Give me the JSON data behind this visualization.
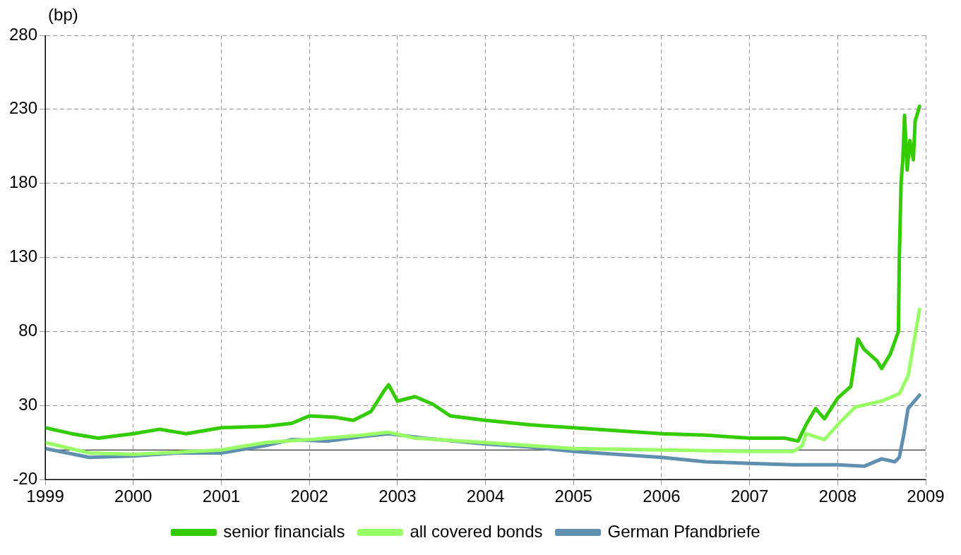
{
  "chart_data": {
    "type": "line",
    "ylabel": "(bp)",
    "xlim": [
      1999,
      2009
    ],
    "xticks": [
      1999,
      2000,
      2001,
      2002,
      2003,
      2004,
      2005,
      2006,
      2007,
      2008,
      2009
    ],
    "ylim": [
      -20,
      280
    ],
    "yticks": [
      -20,
      30,
      80,
      130,
      180,
      230,
      280
    ],
    "grid": true,
    "legend": "bottom",
    "marker": "none",
    "line_style": "solid",
    "ref_lines": [
      {
        "axis": "y",
        "value": 0,
        "color": "#000000"
      }
    ],
    "series": [
      {
        "name": "senior financials",
        "color": "#33cc00",
        "x": [
          1999,
          1999.3,
          1999.6,
          2000,
          2000.3,
          2000.6,
          2001,
          2001.5,
          2001.8,
          2002,
          2002.3,
          2002.5,
          2002.7,
          2002.85,
          2002.9,
          2003,
          2003.2,
          2003.4,
          2003.6,
          2004,
          2004.5,
          2005,
          2005.5,
          2006,
          2006.5,
          2007,
          2007.4,
          2007.55,
          2007.65,
          2007.75,
          2007.85,
          2008,
          2008.15,
          2008.23,
          2008.3,
          2008.45,
          2008.5,
          2008.6,
          2008.69,
          2008.7,
          2008.72,
          2008.74,
          2008.76,
          2008.79,
          2008.82,
          2008.86,
          2008.88,
          2008.93
        ],
        "values": [
          15,
          11,
          8,
          11,
          14,
          11,
          15,
          16,
          18,
          23,
          22,
          20,
          26,
          40,
          44,
          33,
          36,
          31,
          23,
          20,
          17,
          15,
          13,
          11,
          10,
          8,
          8,
          6,
          18,
          28,
          21,
          35,
          43,
          75,
          68,
          60,
          55,
          65,
          80,
          128,
          180,
          196,
          226,
          189,
          209,
          196,
          222,
          232
        ]
      },
      {
        "name": "all covered bonds",
        "color": "#99ff66",
        "x": [
          1999,
          1999.5,
          2000,
          2001,
          2001.5,
          2002,
          2002.6,
          2002.9,
          2003.2,
          2004,
          2004.5,
          2005,
          2006,
          2007,
          2007.5,
          2007.6,
          2007.64,
          2007.85,
          2008,
          2008.2,
          2008.5,
          2008.7,
          2008.8,
          2008.93
        ],
        "values": [
          5,
          -2,
          -3,
          0,
          5,
          7,
          10,
          12,
          8,
          5,
          3,
          1,
          0,
          -1,
          -1,
          3,
          11,
          7,
          17,
          29,
          33,
          38,
          50,
          95
        ]
      },
      {
        "name": "German Pfandbriefe",
        "color": "#6090b0",
        "x": [
          1999,
          1999.5,
          2000,
          2000.5,
          2001,
          2001.5,
          2001.8,
          2002.2,
          2002.6,
          2002.9,
          2003.3,
          2004,
          2004.5,
          2005,
          2005.5,
          2006,
          2006.5,
          2007,
          2007.5,
          2008,
          2008.3,
          2008.5,
          2008.65,
          2008.7,
          2008.75,
          2008.8,
          2008.93
        ],
        "values": [
          1,
          -5,
          -4,
          -2,
          -2,
          3,
          7,
          6,
          9,
          11,
          8,
          4,
          2,
          -1,
          -3,
          -5,
          -8,
          -9,
          -10,
          -10,
          -11,
          -6,
          -8,
          -5,
          10,
          28,
          37
        ]
      }
    ]
  }
}
